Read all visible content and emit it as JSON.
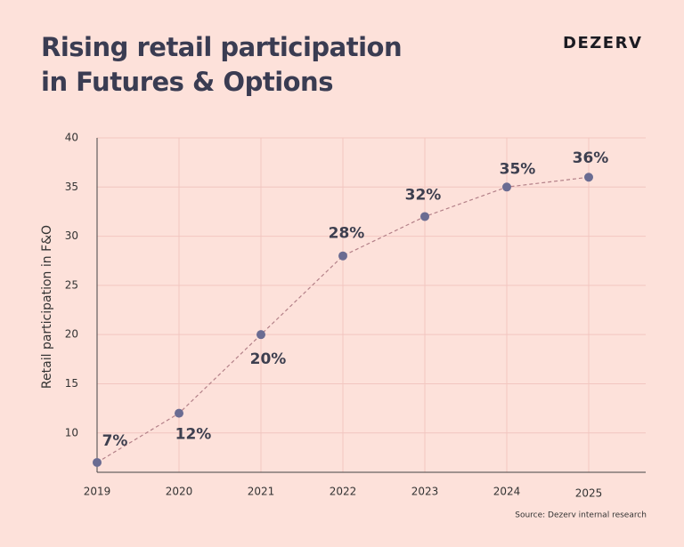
{
  "chart_data": {
    "type": "line",
    "title": "Rising retail participation in Futures & Options",
    "brand": "DEZERV",
    "source": "Source: Dezerv internal research",
    "y_label": "Retail participation in F&O",
    "categories": [
      "2019",
      "2020",
      "2021",
      "2022",
      "2023",
      "2024",
      "2025"
    ],
    "series": [
      {
        "name": "Retail participation",
        "color": "#6a6c92",
        "values": [
          7,
          12,
          20,
          28,
          32,
          35,
          36
        ],
        "value_labels": [
          "7%",
          "12%",
          "20%",
          "28%",
          "32%",
          "35%",
          "36%"
        ]
      }
    ],
    "line_color": "#b38088",
    "ylim": [
      6,
      40
    ],
    "yticks": [
      10,
      15,
      20,
      25,
      30,
      35,
      40
    ],
    "grid": true
  }
}
